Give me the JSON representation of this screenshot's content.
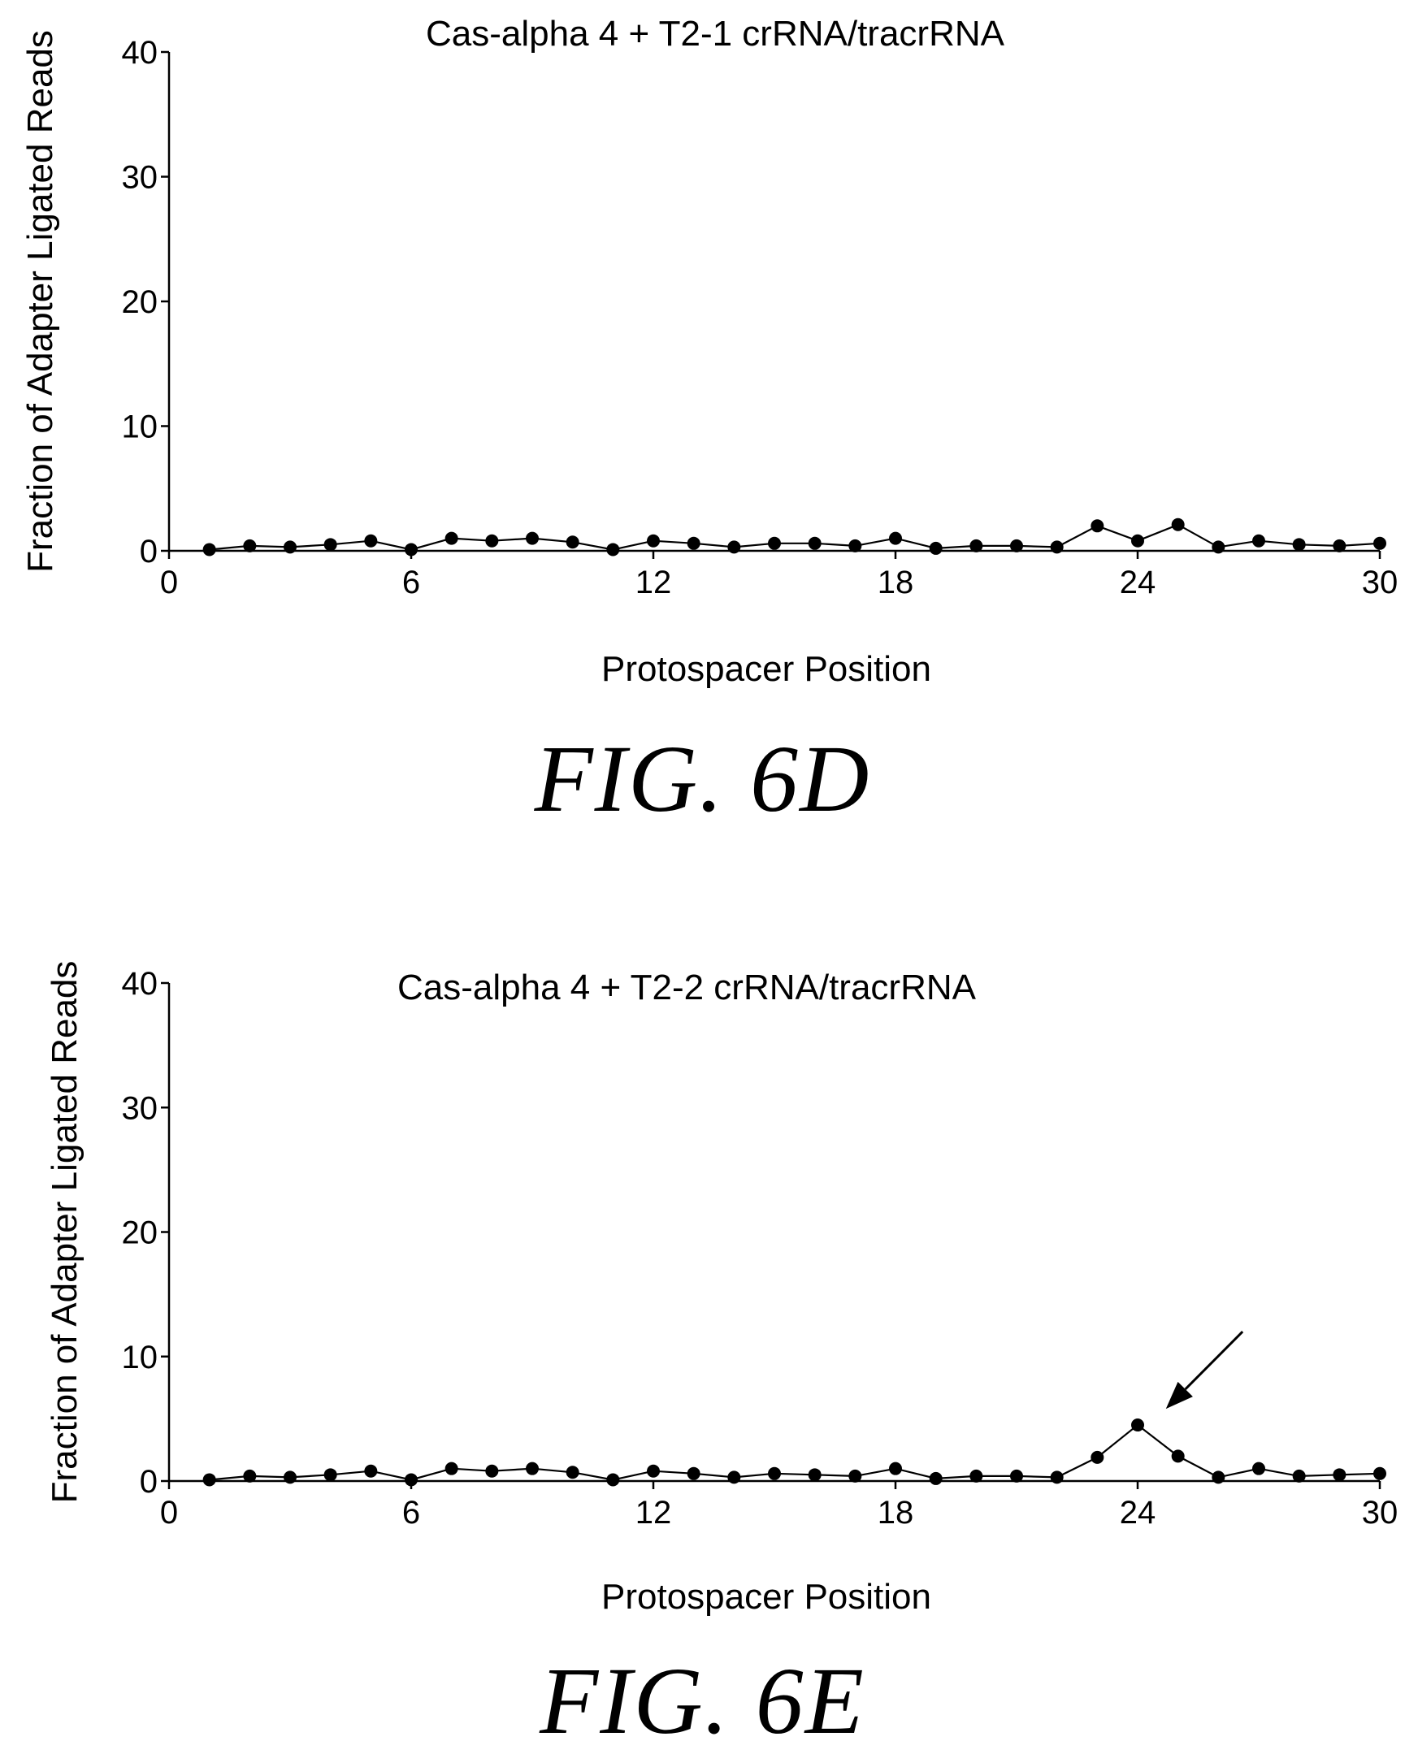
{
  "figures": [
    {
      "label": "FIG. 6D",
      "chart_data": {
        "type": "line",
        "title": "Cas-alpha 4 + T2-1 crRNA/tracrRNA",
        "xlabel": "Protospacer Position",
        "ylabel": "Fraction of Adapter Ligated Reads",
        "xlim": [
          0,
          30
        ],
        "ylim": [
          0,
          40
        ],
        "xticks": [
          0,
          6,
          12,
          18,
          24,
          30
        ],
        "yticks": [
          0,
          10,
          20,
          30,
          40
        ],
        "marker": "filled-circle",
        "grid": false,
        "x": [
          1,
          2,
          3,
          4,
          5,
          6,
          7,
          8,
          9,
          10,
          11,
          12,
          13,
          14,
          15,
          16,
          17,
          18,
          19,
          20,
          21,
          22,
          23,
          24,
          25,
          26,
          27,
          28,
          29,
          30
        ],
        "y": [
          0.1,
          0.4,
          0.3,
          0.5,
          0.8,
          0.1,
          1.0,
          0.8,
          1.0,
          0.7,
          0.1,
          0.8,
          0.6,
          0.3,
          0.6,
          0.6,
          0.4,
          1.0,
          0.2,
          0.4,
          0.4,
          0.3,
          2.0,
          0.8,
          2.1,
          0.3,
          0.8,
          0.5,
          0.4,
          0.6
        ]
      }
    },
    {
      "label": "FIG. 6E",
      "chart_data": {
        "type": "line",
        "title": "Cas-alpha 4 + T2-2 crRNA/tracrRNA",
        "xlabel": "Protospacer Position",
        "ylabel": "Fraction of Adapter Ligated Reads",
        "xlim": [
          0,
          30
        ],
        "ylim": [
          0,
          40
        ],
        "xticks": [
          0,
          6,
          12,
          18,
          24,
          30
        ],
        "yticks": [
          0,
          10,
          20,
          30,
          40
        ],
        "marker": "filled-circle",
        "grid": false,
        "x": [
          1,
          2,
          3,
          4,
          5,
          6,
          7,
          8,
          9,
          10,
          11,
          12,
          13,
          14,
          15,
          16,
          17,
          18,
          19,
          20,
          21,
          22,
          23,
          24,
          25,
          26,
          27,
          28,
          29,
          30
        ],
        "y": [
          0.1,
          0.4,
          0.3,
          0.5,
          0.8,
          0.1,
          1.0,
          0.8,
          1.0,
          0.7,
          0.1,
          0.8,
          0.6,
          0.3,
          0.6,
          0.5,
          0.4,
          1.0,
          0.2,
          0.4,
          0.4,
          0.3,
          1.9,
          4.5,
          2.0,
          0.3,
          1.0,
          0.4,
          0.5,
          0.6
        ],
        "annotations": [
          {
            "type": "arrow",
            "points_to": {
              "x": 24.7,
              "y": 5.8
            },
            "from": {
              "x": 26.6,
              "y": 12
            }
          }
        ]
      }
    }
  ]
}
